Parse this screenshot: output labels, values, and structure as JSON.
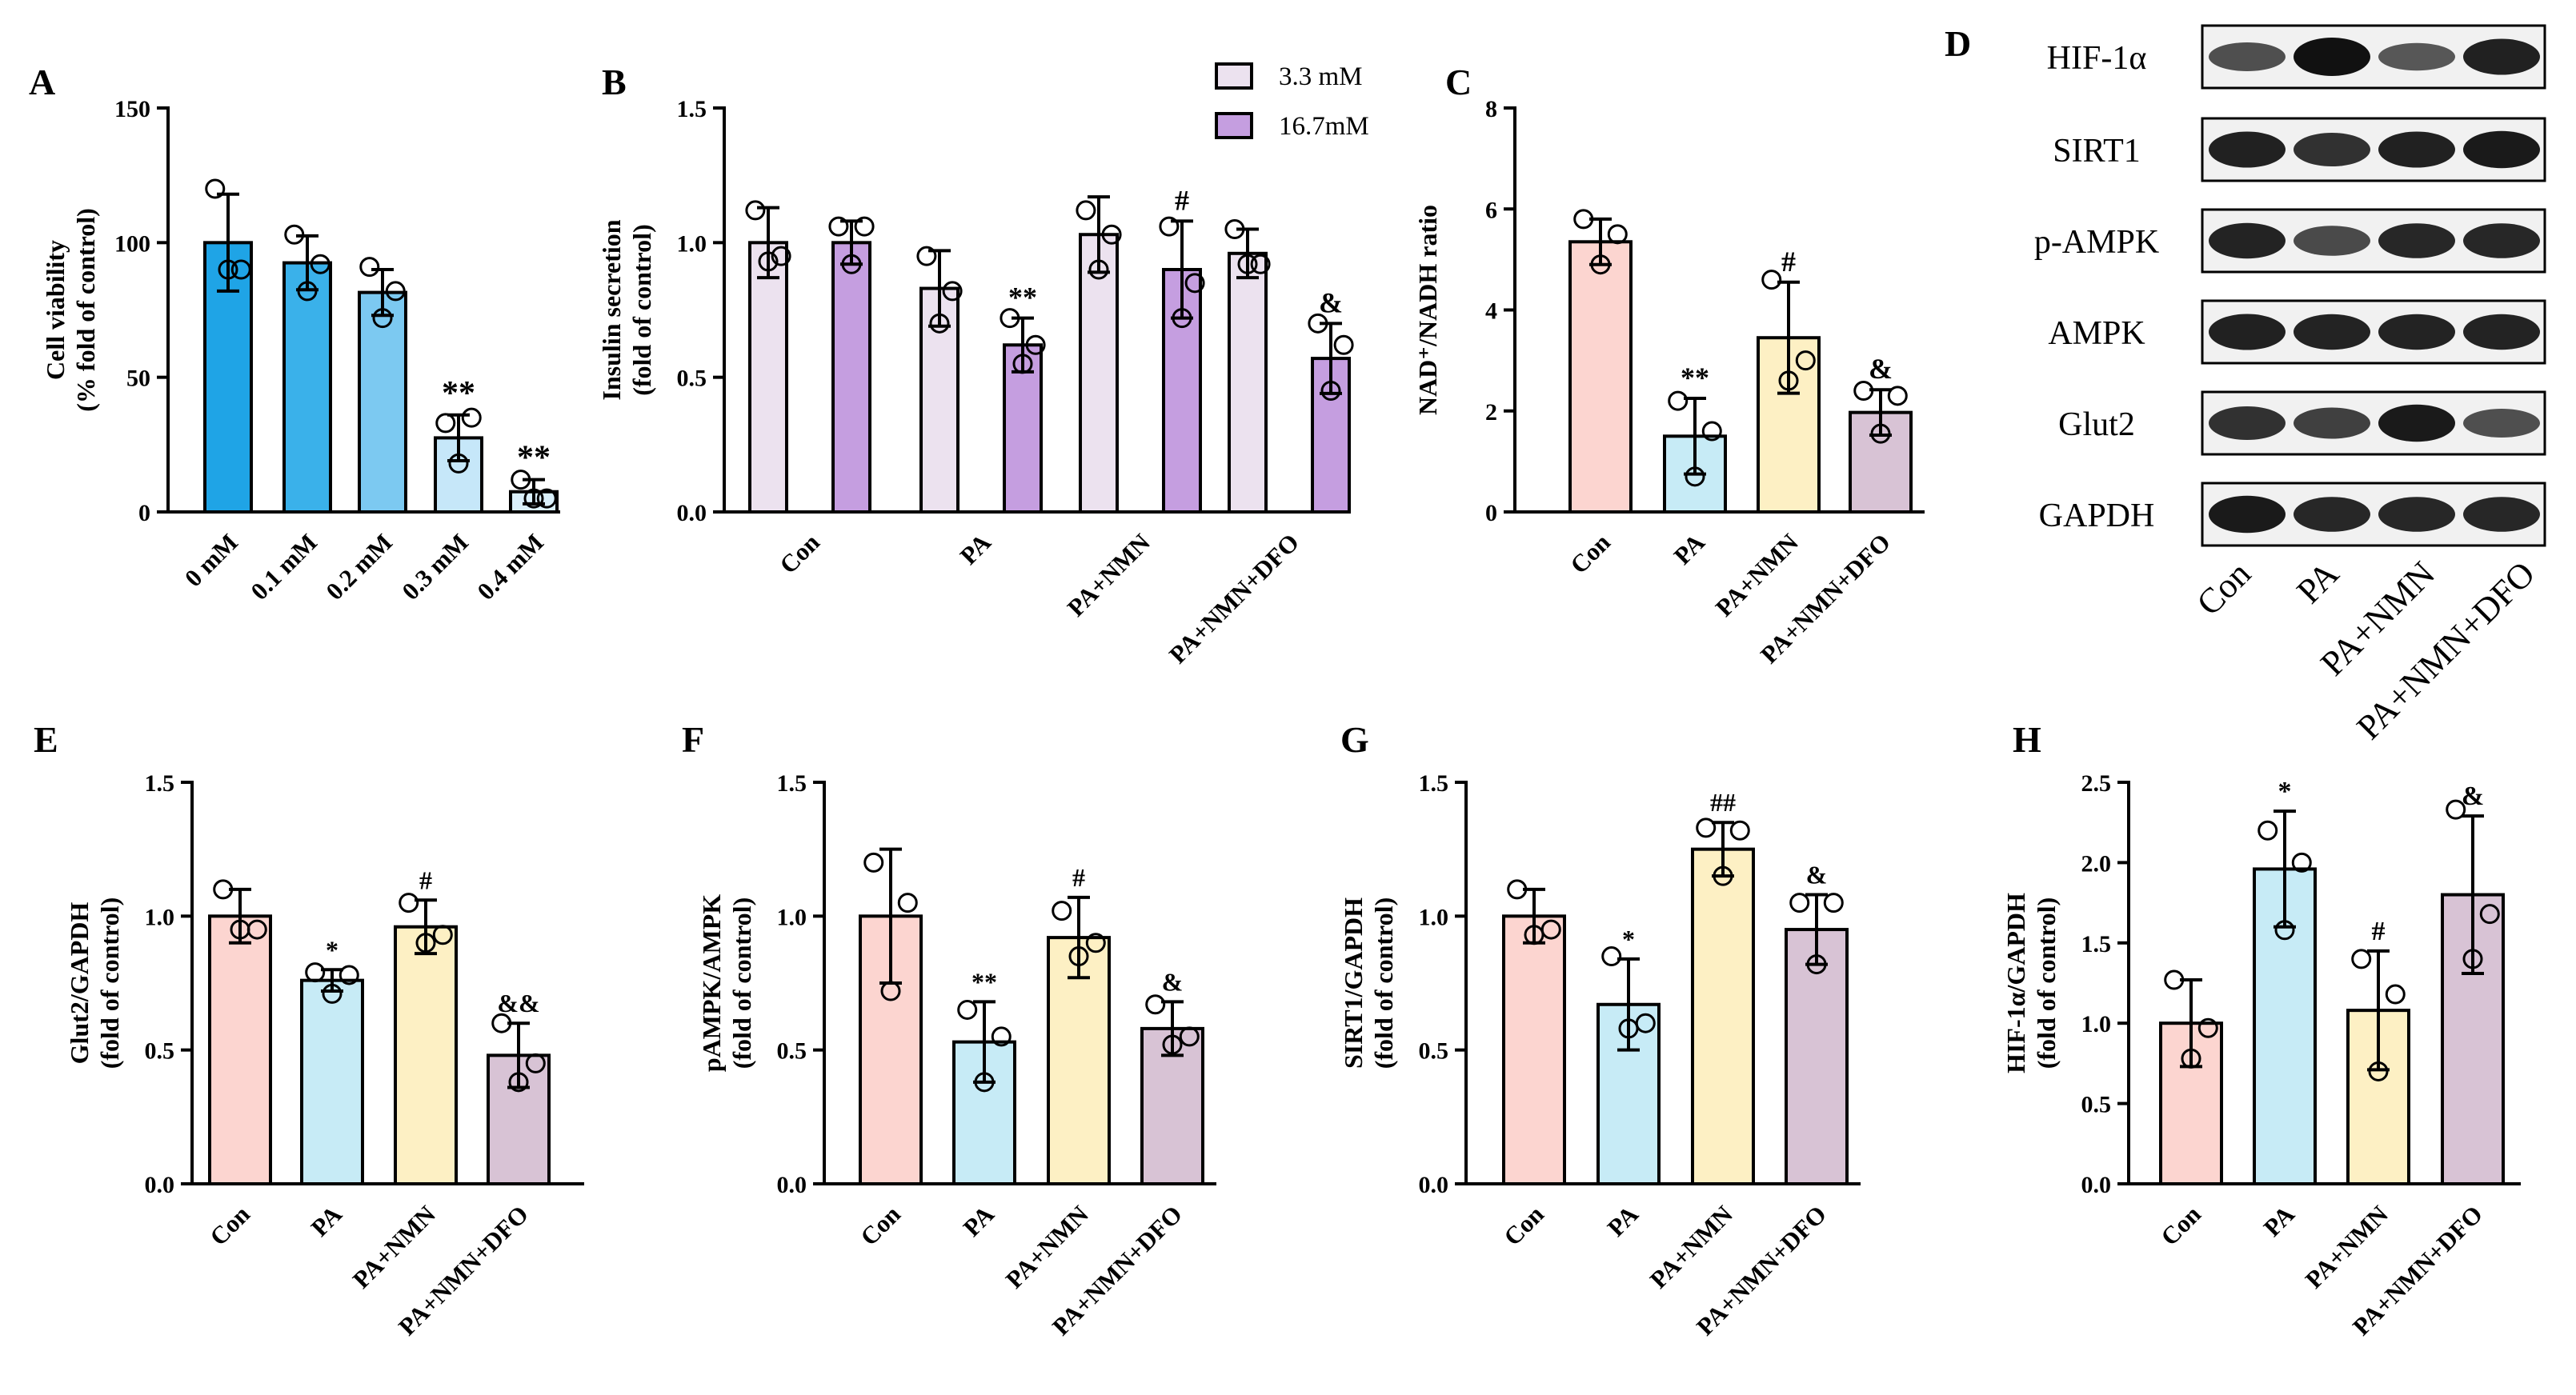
{
  "chart_data": [
    {
      "id": "A",
      "type": "bar",
      "letter": "A",
      "ylabel": [
        "Cell viability",
        "(% fold of control)"
      ],
      "ylim": [
        0,
        150
      ],
      "yticks": [
        0,
        50,
        100,
        150
      ],
      "ytick_labels": [
        "0",
        "50",
        "100",
        "150"
      ],
      "categories": [
        "0 mM",
        "0.1 mM",
        "0.2 mM",
        "0.3 mM",
        "0.4 mM"
      ],
      "values": [
        100,
        92.5,
        81.5,
        27.5,
        7.5
      ],
      "errors": [
        18,
        10,
        8.5,
        8.5,
        4.5
      ],
      "points": [
        [
          120,
          90,
          90
        ],
        [
          103,
          92,
          82
        ],
        [
          91,
          82,
          72
        ],
        [
          33,
          35,
          18
        ],
        [
          12,
          5,
          5
        ]
      ],
      "colors": [
        "#1fa4e6",
        "#3ab1ea",
        "#7cc9f1",
        "#c6e7f9",
        "#daf0fb"
      ],
      "annotations": [
        "",
        "",
        "",
        "**",
        "**"
      ]
    },
    {
      "id": "B",
      "type": "bar",
      "letter": "B",
      "ylabel": [
        "Insulin secretion",
        "(fold of control)"
      ],
      "ylim": [
        0,
        1.5
      ],
      "yticks": [
        0,
        0.5,
        1.0,
        1.5
      ],
      "ytick_labels": [
        "0.0",
        "0.5",
        "1.0",
        "1.5"
      ],
      "categories": [
        "Con",
        "PA",
        "PA+NMN",
        "PA+NMN+DFO"
      ],
      "series": [
        {
          "name": "3.3 mM",
          "color": "#ece2ef",
          "values": [
            1.0,
            0.83,
            1.03,
            0.96
          ],
          "errors": [
            0.13,
            0.14,
            0.14,
            0.09
          ],
          "points": [
            [
              1.12,
              0.95,
              0.93
            ],
            [
              0.95,
              0.82,
              0.7
            ],
            [
              1.12,
              1.03,
              0.9
            ],
            [
              1.05,
              0.92,
              0.92
            ]
          ],
          "annotations": [
            "",
            "",
            "",
            ""
          ]
        },
        {
          "name": "16.7mM",
          "color": "#c59ee0",
          "values": [
            1.0,
            0.62,
            0.9,
            0.57
          ],
          "errors": [
            0.08,
            0.1,
            0.18,
            0.13
          ],
          "points": [
            [
              1.06,
              1.06,
              0.92
            ],
            [
              0.72,
              0.62,
              0.55
            ],
            [
              1.06,
              0.85,
              0.72
            ],
            [
              0.7,
              0.62,
              0.45
            ]
          ],
          "annotations": [
            "",
            "**",
            "#",
            "&"
          ]
        }
      ],
      "legend": "top-right"
    },
    {
      "id": "C",
      "type": "bar",
      "letter": "C",
      "ylabel": [
        "NAD⁺/NADH ratio"
      ],
      "ylim": [
        0,
        8
      ],
      "yticks": [
        0,
        2,
        4,
        6,
        8
      ],
      "ytick_labels": [
        "0",
        "2",
        "4",
        "6",
        "8"
      ],
      "categories": [
        "Con",
        "PA",
        "PA+NMN",
        "PA+NMN+DFO"
      ],
      "values": [
        5.35,
        1.5,
        3.45,
        1.97
      ],
      "errors": [
        0.45,
        0.75,
        1.1,
        0.45
      ],
      "points": [
        [
          5.8,
          5.5,
          4.9
        ],
        [
          2.2,
          1.6,
          0.7
        ],
        [
          4.6,
          3.0,
          2.6
        ],
        [
          2.4,
          2.3,
          1.55
        ]
      ],
      "colors": [
        "#fcd5d0",
        "#c7ebf6",
        "#fdf0c4",
        "#d8c3d5"
      ],
      "annotations": [
        "",
        "**",
        "#",
        "&"
      ]
    },
    {
      "id": "E",
      "type": "bar",
      "letter": "E",
      "ylabel": [
        "Glut2/GAPDH",
        "(fold of control)"
      ],
      "ylim": [
        0,
        1.5
      ],
      "yticks": [
        0,
        0.5,
        1.0,
        1.5
      ],
      "ytick_labels": [
        "0.0",
        "0.5",
        "1.0",
        "1.5"
      ],
      "categories": [
        "Con",
        "PA",
        "PA+NMN",
        "PA+NMN+DFO"
      ],
      "values": [
        1.0,
        0.76,
        0.96,
        0.48
      ],
      "errors": [
        0.1,
        0.04,
        0.1,
        0.12
      ],
      "points": [
        [
          1.1,
          0.95,
          0.95
        ],
        [
          0.79,
          0.78,
          0.71
        ],
        [
          1.05,
          0.93,
          0.9
        ],
        [
          0.6,
          0.45,
          0.38
        ]
      ],
      "colors": [
        "#fcd5d0",
        "#c7ebf6",
        "#fdf0c4",
        "#d8c3d5"
      ],
      "annotations": [
        "",
        "*",
        "#",
        "&&"
      ]
    },
    {
      "id": "F",
      "type": "bar",
      "letter": "F",
      "ylabel": [
        "pAMPK/AMPK",
        "(fold of control)"
      ],
      "ylim": [
        0,
        1.5
      ],
      "yticks": [
        0,
        0.5,
        1.0,
        1.5
      ],
      "ytick_labels": [
        "0.0",
        "0.5",
        "1.0",
        "1.5"
      ],
      "categories": [
        "Con",
        "PA",
        "PA+NMN",
        "PA+NMN+DFO"
      ],
      "values": [
        1.0,
        0.53,
        0.92,
        0.58
      ],
      "errors": [
        0.25,
        0.15,
        0.15,
        0.1
      ],
      "points": [
        [
          1.2,
          1.05,
          0.72
        ],
        [
          0.65,
          0.55,
          0.38
        ],
        [
          1.02,
          0.9,
          0.85
        ],
        [
          0.67,
          0.55,
          0.52
        ]
      ],
      "colors": [
        "#fcd5d0",
        "#c7ebf6",
        "#fdf0c4",
        "#d8c3d5"
      ],
      "annotations": [
        "",
        "**",
        "#",
        "&"
      ]
    },
    {
      "id": "G",
      "type": "bar",
      "letter": "G",
      "ylabel": [
        "SIRT1/GAPDH",
        "(fold of control)"
      ],
      "ylim": [
        0,
        1.5
      ],
      "yticks": [
        0,
        0.5,
        1.0,
        1.5
      ],
      "ytick_labels": [
        "0.0",
        "0.5",
        "1.0",
        "1.5"
      ],
      "categories": [
        "Con",
        "PA",
        "PA+NMN",
        "PA+NMN+DFO"
      ],
      "values": [
        1.0,
        0.67,
        1.25,
        0.95
      ],
      "errors": [
        0.1,
        0.17,
        0.1,
        0.13
      ],
      "points": [
        [
          1.1,
          0.95,
          0.93
        ],
        [
          0.85,
          0.6,
          0.58
        ],
        [
          1.33,
          1.32,
          1.15
        ],
        [
          1.05,
          1.05,
          0.82
        ]
      ],
      "colors": [
        "#fcd5d0",
        "#c7ebf6",
        "#fdf0c4",
        "#d8c3d5"
      ],
      "annotations": [
        "",
        "*",
        "##",
        "&"
      ]
    },
    {
      "id": "H",
      "type": "bar",
      "letter": "H",
      "ylabel": [
        "HIF-1α/GAPDH",
        "(fold of control)"
      ],
      "ylim": [
        0,
        2.5
      ],
      "yticks": [
        0,
        0.5,
        1.0,
        1.5,
        2.0,
        2.5
      ],
      "ytick_labels": [
        "0.0",
        "0.5",
        "1.0",
        "1.5",
        "2.0",
        "2.5"
      ],
      "categories": [
        "Con",
        "PA",
        "PA+NMN",
        "PA+NMN+DFO"
      ],
      "values": [
        1.0,
        1.96,
        1.08,
        1.8
      ],
      "errors": [
        0.27,
        0.36,
        0.37,
        0.49
      ],
      "points": [
        [
          1.27,
          0.97,
          0.78
        ],
        [
          2.2,
          2.0,
          1.58
        ],
        [
          1.4,
          1.18,
          0.7
        ],
        [
          2.33,
          1.68,
          1.4
        ]
      ],
      "colors": [
        "#fcd5d0",
        "#c7ebf6",
        "#fdf0c4",
        "#d8c3d5"
      ],
      "annotations": [
        "",
        "*",
        "#",
        "&"
      ]
    }
  ],
  "blot": {
    "letter": "D",
    "rows": [
      "HIF-1α",
      "SIRT1",
      "p-AMPK",
      "AMPK",
      "Glut2",
      "GAPDH"
    ],
    "intensities": [
      [
        0.6,
        1.0,
        0.55,
        0.9
      ],
      [
        0.9,
        0.8,
        0.9,
        0.95
      ],
      [
        0.88,
        0.65,
        0.85,
        0.85
      ],
      [
        0.9,
        0.88,
        0.88,
        0.88
      ],
      [
        0.8,
        0.7,
        0.95,
        0.6
      ],
      [
        0.95,
        0.85,
        0.85,
        0.85
      ]
    ],
    "categories": [
      "Con",
      "PA",
      "PA+NMN",
      "PA+NMN+DFO"
    ]
  }
}
